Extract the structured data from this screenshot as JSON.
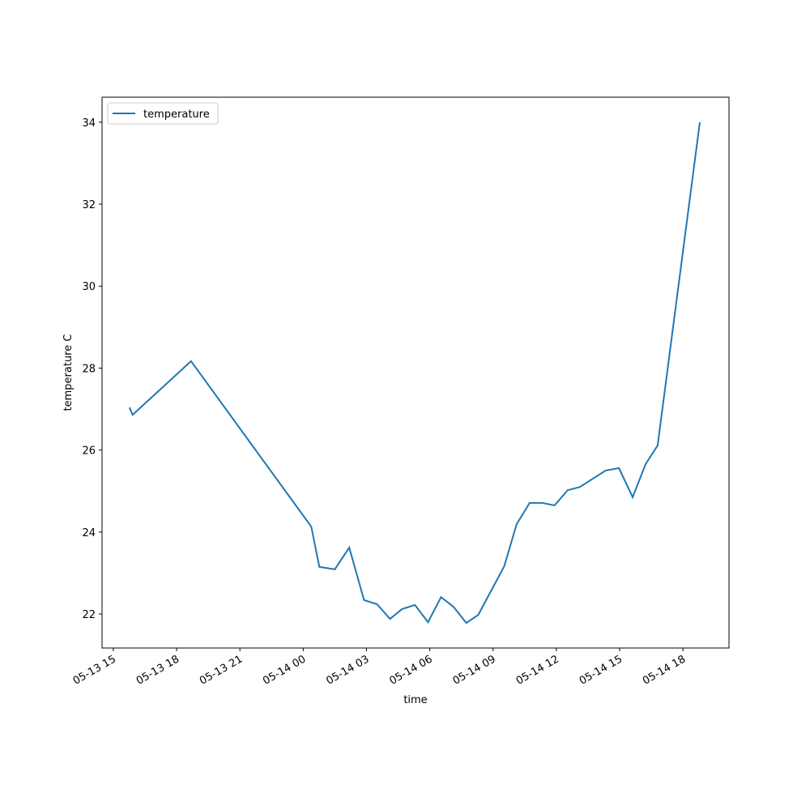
{
  "chart_data": {
    "type": "line",
    "xlabel": "time",
    "ylabel": "temperature C",
    "x": [
      "05-13 15:46",
      "05-13 15:55",
      "05-13 18:41",
      "05-14 00:23",
      "05-14 00:46",
      "05-14 01:30",
      "05-14 02:11",
      "05-14 02:53",
      "05-14 03:30",
      "05-14 04:07",
      "05-14 04:41",
      "05-14 05:18",
      "05-14 05:55",
      "05-14 06:32",
      "05-14 07:07",
      "05-14 07:44",
      "05-14 08:18",
      "05-14 09:32",
      "05-14 10:07",
      "05-14 10:44",
      "05-14 11:20",
      "05-14 11:55",
      "05-14 12:32",
      "05-14 13:07",
      "05-14 14:20",
      "05-14 14:58",
      "05-14 15:37",
      "05-14 16:14",
      "05-14 16:48",
      "05-14 18:48"
    ],
    "series": [
      {
        "name": "temperature",
        "color": "#1f77b4",
        "values": [
          27.04,
          26.86,
          28.17,
          24.13,
          23.15,
          23.09,
          23.62,
          22.34,
          22.24,
          21.88,
          22.12,
          22.22,
          21.8,
          22.41,
          22.18,
          21.78,
          21.98,
          23.17,
          24.19,
          24.71,
          24.71,
          24.65,
          25.02,
          25.1,
          25.5,
          25.56,
          24.85,
          25.66,
          26.11,
          34.0
        ]
      }
    ],
    "xlim": [
      "05-13 14:28",
      "05-14 20:11"
    ],
    "xticks": [
      "05-13 15",
      "05-13 18",
      "05-13 21",
      "05-14 00",
      "05-14 03",
      "05-14 06",
      "05-14 09",
      "05-14 12",
      "05-14 15",
      "05-14 18"
    ],
    "ylim": [
      21.17,
      34.61
    ],
    "yticks": [
      22,
      24,
      26,
      28,
      30,
      32,
      34
    ],
    "legend": "upper left"
  }
}
